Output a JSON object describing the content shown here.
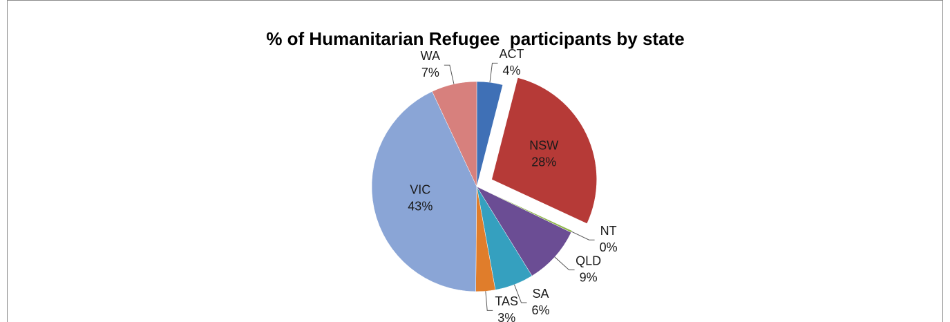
{
  "chart_data": {
    "type": "pie",
    "title": "% of Humanitarian Refugee  participants by state",
    "categories": [
      "ACT",
      "NSW",
      "NT",
      "QLD",
      "SA",
      "TAS",
      "VIC",
      "WA"
    ],
    "values": [
      4,
      28,
      0.3,
      9,
      6,
      3,
      43,
      7
    ],
    "value_labels": [
      "4%",
      "28%",
      "0%",
      "9%",
      "6%",
      "3%",
      "43%",
      "7%"
    ],
    "colors": [
      "#3f70b6",
      "#b63a37",
      "#8db548",
      "#6b4d94",
      "#35a0bf",
      "#e07d2b",
      "#8aa5d6",
      "#d7807d"
    ],
    "exploded": [
      "NSW"
    ]
  }
}
